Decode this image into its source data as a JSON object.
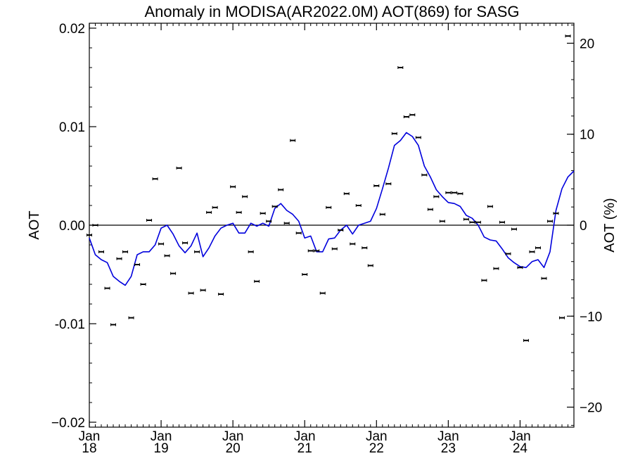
{
  "chart_data": {
    "type": "scatter",
    "title": "Anomaly in MODISA(AR2022.0M) AOT(869) for SASG",
    "ylabel_left": "AOT",
    "ylabel_right": "AOT (%)",
    "xlabel": "",
    "ylim": [
      -0.0205,
      0.0205
    ],
    "ylim_right": [
      -22.2,
      22.2
    ],
    "xlim": [
      "2018-01",
      "2024-10"
    ],
    "y_ticks": [
      {
        "value": -0.02,
        "label": "−0.02"
      },
      {
        "value": -0.01,
        "label": "-0.01"
      },
      {
        "value": 0.0,
        "label": "0.00"
      },
      {
        "value": 0.01,
        "label": "0.01"
      },
      {
        "value": 0.02,
        "label": "0.02"
      }
    ],
    "y_right_ticks": [
      {
        "value": -20,
        "label": "−20"
      },
      {
        "value": -10,
        "label": "−10"
      },
      {
        "value": 0,
        "label": "0"
      },
      {
        "value": 10,
        "label": "10"
      },
      {
        "value": 20,
        "label": "20"
      }
    ],
    "x_ticks": [
      {
        "month": "Jan",
        "year": "18",
        "date": "2018-01"
      },
      {
        "month": "Jan",
        "year": "19",
        "date": "2019-01"
      },
      {
        "month": "Jan",
        "year": "20",
        "date": "2020-01"
      },
      {
        "month": "Jan",
        "year": "21",
        "date": "2021-01"
      },
      {
        "month": "Jan",
        "year": "22",
        "date": "2022-01"
      },
      {
        "month": "Jan",
        "year": "23",
        "date": "2023-01"
      },
      {
        "month": "Jan",
        "year": "24",
        "date": "2024-01"
      }
    ],
    "zero_line": 0.0,
    "series": [
      {
        "style": "markers",
        "color": "#000000",
        "x": [
          "2018-01",
          "2018-02",
          "2018-03",
          "2018-04",
          "2018-05",
          "2018-06",
          "2018-07",
          "2018-08",
          "2018-09",
          "2018-10",
          "2018-11",
          "2018-12",
          "2019-01",
          "2019-02",
          "2019-03",
          "2019-04",
          "2019-05",
          "2019-06",
          "2019-07",
          "2019-08",
          "2019-09",
          "2019-10",
          "2019-11",
          "2019-12",
          "2020-01",
          "2020-02",
          "2020-03",
          "2020-04",
          "2020-05",
          "2020-06",
          "2020-07",
          "2020-08",
          "2020-09",
          "2020-10",
          "2020-11",
          "2020-12",
          "2021-01",
          "2021-02",
          "2021-03",
          "2021-04",
          "2021-05",
          "2021-06",
          "2021-07",
          "2021-08",
          "2021-09",
          "2021-10",
          "2021-11",
          "2021-12",
          "2022-01",
          "2022-02",
          "2022-03",
          "2022-04",
          "2022-05",
          "2022-06",
          "2022-07",
          "2022-08",
          "2022-09",
          "2022-10",
          "2022-11",
          "2022-12",
          "2023-01",
          "2023-02",
          "2023-03",
          "2023-04",
          "2023-05",
          "2023-06",
          "2023-07",
          "2023-08",
          "2023-09",
          "2023-10",
          "2023-11",
          "2023-12",
          "2024-01",
          "2024-02",
          "2024-03",
          "2024-04",
          "2024-05",
          "2024-06",
          "2024-07",
          "2024-08",
          "2024-09"
        ],
        "values": [
          -0.001,
          0.0,
          -0.0027,
          -0.0064,
          -0.0101,
          -0.0034,
          -0.0027,
          -0.0094,
          -0.004,
          -0.006,
          0.0005,
          0.0047,
          -0.0019,
          -0.0031,
          -0.0049,
          0.0058,
          -0.0018,
          -0.0069,
          -0.0027,
          -0.0066,
          0.0013,
          0.0018,
          -0.007,
          null,
          0.0039,
          0.0013,
          0.0029,
          -0.0027,
          -0.0057,
          0.0012,
          0.0004,
          0.0019,
          0.0036,
          0.0002,
          0.0086,
          -0.0008,
          -0.005,
          -0.0026,
          -0.0026,
          -0.0069,
          0.0018,
          -0.0024,
          -0.0005,
          0.0032,
          -0.0019,
          0.002,
          -0.0023,
          -0.0041,
          0.004,
          0.0011,
          0.0042,
          0.0093,
          0.016,
          0.011,
          0.0112,
          0.0089,
          0.0051,
          0.0016,
          0.0029,
          0.0004,
          0.0033,
          0.0033,
          0.0032,
          0.0006,
          0.0003,
          0.0003,
          -0.0056,
          0.0019,
          -0.0044,
          0.0003,
          -0.0029,
          -0.0004,
          -0.0043,
          -0.0117,
          -0.0027,
          -0.0023,
          -0.0054,
          0.0004,
          0.0012,
          -0.0094,
          0.0192
        ]
      },
      {
        "style": "line",
        "color": "#0000dd",
        "x": [
          "2018-01",
          "2018-02",
          "2018-03",
          "2018-04",
          "2018-05",
          "2018-06",
          "2018-07",
          "2018-08",
          "2018-09",
          "2018-10",
          "2018-11",
          "2018-12",
          "2019-01",
          "2019-02",
          "2019-03",
          "2019-04",
          "2019-05",
          "2019-06",
          "2019-07",
          "2019-08",
          "2019-09",
          "2019-10",
          "2019-11",
          "2019-12",
          "2020-01",
          "2020-02",
          "2020-03",
          "2020-04",
          "2020-05",
          "2020-06",
          "2020-07",
          "2020-08",
          "2020-09",
          "2020-10",
          "2020-11",
          "2020-12",
          "2021-01",
          "2021-02",
          "2021-03",
          "2021-04",
          "2021-05",
          "2021-06",
          "2021-07",
          "2021-08",
          "2021-09",
          "2021-10",
          "2021-11",
          "2021-12",
          "2022-01",
          "2022-02",
          "2022-03",
          "2022-04",
          "2022-05",
          "2022-06",
          "2022-07",
          "2022-08",
          "2022-09",
          "2022-10",
          "2022-11",
          "2022-12",
          "2023-01",
          "2023-02",
          "2023-03",
          "2023-04",
          "2023-05",
          "2023-06",
          "2023-07",
          "2023-08",
          "2023-09",
          "2023-10",
          "2023-11",
          "2023-12",
          "2024-01",
          "2024-02",
          "2024-03",
          "2024-04",
          "2024-05",
          "2024-06",
          "2024-07",
          "2024-08",
          "2024-09",
          "2024-10"
        ],
        "values": [
          -0.0013,
          -0.003,
          -0.0035,
          -0.0038,
          -0.0052,
          -0.0057,
          -0.0061,
          -0.0052,
          -0.003,
          -0.0027,
          -0.0027,
          -0.002,
          -0.0003,
          0.0,
          -0.0009,
          -0.0021,
          -0.0028,
          -0.0021,
          -0.0008,
          -0.0032,
          -0.0023,
          -0.0011,
          -0.0003,
          0.0,
          0.0002,
          -0.0008,
          -0.0008,
          0.0002,
          -0.0001,
          0.0002,
          -0.0001,
          0.0017,
          0.0022,
          0.0015,
          0.0011,
          0.0004,
          -0.0013,
          -0.0011,
          -0.0027,
          -0.0027,
          -0.0014,
          -0.0013,
          -0.0005,
          0.0,
          -0.0009,
          0.0,
          0.0002,
          0.0004,
          0.0017,
          0.0037,
          0.0058,
          0.0081,
          0.0086,
          0.0094,
          0.009,
          0.0081,
          0.006,
          0.0049,
          0.0036,
          0.0029,
          0.0023,
          0.0022,
          0.0019,
          0.001,
          0.0007,
          0.0,
          -0.0012,
          -0.0015,
          -0.0016,
          -0.0024,
          -0.0033,
          -0.0038,
          -0.0042,
          -0.0043,
          -0.0037,
          -0.0035,
          -0.0043,
          -0.0027,
          0.0015,
          0.0037,
          0.0049,
          0.0055
        ]
      }
    ],
    "grid": false,
    "legend": "none"
  }
}
